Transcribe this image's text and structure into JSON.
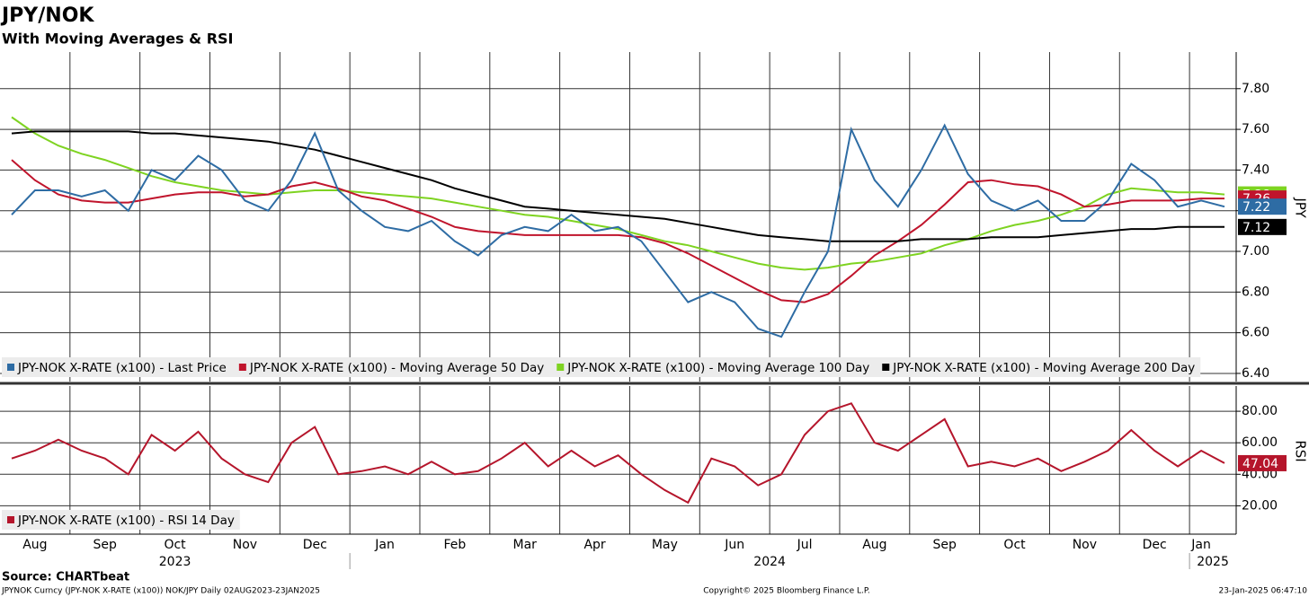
{
  "chart_data": [
    {
      "type": "line",
      "title": "JPY/NOK",
      "subtitle": "With Moving Averages & RSI",
      "y_label": "JPY",
      "categories": [
        null,
        "Aug",
        null,
        null,
        "Sep",
        null,
        null,
        "Oct",
        null,
        null,
        "Nov",
        null,
        null,
        "Dec",
        null,
        null,
        "Jan",
        null,
        null,
        "Feb",
        null,
        null,
        "Mar",
        null,
        null,
        "Apr",
        null,
        null,
        "May",
        null,
        null,
        "Jun",
        null,
        null,
        "Jul",
        null,
        null,
        "Aug",
        null,
        null,
        "Sep",
        null,
        null,
        "Oct",
        null,
        null,
        "Nov",
        null,
        null,
        "Dec",
        null,
        "Jan",
        null
      ],
      "year_labels": [
        "2023",
        "2024",
        "2025"
      ],
      "ylim": [
        6.36,
        7.98
      ],
      "yticks": [
        {
          "value": 6.4,
          "label": "6.40"
        },
        {
          "value": 6.6,
          "label": "6.60"
        },
        {
          "value": 6.8,
          "label": "6.80"
        },
        {
          "value": 7.0,
          "label": "7.00"
        },
        {
          "value": 7.2,
          "label": "7.20"
        },
        {
          "value": 7.4,
          "label": "7.40"
        },
        {
          "value": 7.6,
          "label": "7.60"
        },
        {
          "value": 7.8,
          "label": "7.80"
        }
      ],
      "grid": true,
      "legend": "bottom-left",
      "series": [
        {
          "name": "JPY-NOK X-RATE (x100) - Moving Average 100 Day",
          "color": "#7ed321",
          "end_label": "7.28",
          "values": [
            7.66,
            7.58,
            7.52,
            7.48,
            7.45,
            7.41,
            7.37,
            7.34,
            7.32,
            7.3,
            7.29,
            7.28,
            7.29,
            7.3,
            7.3,
            7.29,
            7.28,
            7.27,
            7.26,
            7.24,
            7.22,
            7.2,
            7.18,
            7.17,
            7.15,
            7.13,
            7.11,
            7.08,
            7.05,
            7.03,
            7.0,
            6.97,
            6.94,
            6.92,
            6.91,
            6.92,
            6.94,
            6.95,
            6.97,
            6.99,
            7.03,
            7.06,
            7.1,
            7.13,
            7.15,
            7.18,
            7.22,
            7.28,
            7.31,
            7.3,
            7.29,
            7.29,
            7.28
          ]
        },
        {
          "name": "JPY-NOK X-RATE (x100) - Moving Average 50 Day",
          "color": "#c0142c",
          "end_label": "7.26",
          "values": [
            7.45,
            7.35,
            7.28,
            7.25,
            7.24,
            7.24,
            7.26,
            7.28,
            7.29,
            7.29,
            7.27,
            7.28,
            7.32,
            7.34,
            7.31,
            7.27,
            7.25,
            7.21,
            7.17,
            7.12,
            7.1,
            7.09,
            7.08,
            7.08,
            7.08,
            7.08,
            7.08,
            7.07,
            7.04,
            6.99,
            6.93,
            6.87,
            6.81,
            6.76,
            6.75,
            6.79,
            6.88,
            6.98,
            7.05,
            7.13,
            7.23,
            7.34,
            7.35,
            7.33,
            7.32,
            7.28,
            7.22,
            7.23,
            7.25,
            7.25,
            7.25,
            7.26,
            7.26
          ]
        },
        {
          "name": "JPY-NOK X-RATE (x100) - Moving Average 200 Day",
          "color": "#000000",
          "end_label": "7.12",
          "values": [
            7.58,
            7.59,
            7.59,
            7.59,
            7.59,
            7.59,
            7.58,
            7.58,
            7.57,
            7.56,
            7.55,
            7.54,
            7.52,
            7.5,
            7.47,
            7.44,
            7.41,
            7.38,
            7.35,
            7.31,
            7.28,
            7.25,
            7.22,
            7.21,
            7.2,
            7.19,
            7.18,
            7.17,
            7.16,
            7.14,
            7.12,
            7.1,
            7.08,
            7.07,
            7.06,
            7.05,
            7.05,
            7.05,
            7.05,
            7.06,
            7.06,
            7.06,
            7.07,
            7.07,
            7.07,
            7.08,
            7.09,
            7.1,
            7.11,
            7.11,
            7.12,
            7.12,
            7.12
          ]
        },
        {
          "name": "JPY-NOK X-RATE (x100) - Last Price",
          "color": "#2e6ca4",
          "end_label": "7.22",
          "values": [
            7.18,
            7.3,
            7.3,
            7.27,
            7.3,
            7.2,
            7.4,
            7.35,
            7.47,
            7.4,
            7.25,
            7.2,
            7.35,
            7.58,
            7.3,
            7.2,
            7.12,
            7.1,
            7.15,
            7.05,
            6.98,
            7.08,
            7.12,
            7.1,
            7.18,
            7.1,
            7.12,
            7.05,
            6.9,
            6.75,
            6.8,
            6.75,
            6.62,
            6.58,
            6.8,
            7.0,
            7.6,
            7.35,
            7.22,
            7.4,
            7.62,
            7.38,
            7.25,
            7.2,
            7.25,
            7.15,
            7.15,
            7.25,
            7.43,
            7.35,
            7.22,
            7.25,
            7.22
          ]
        }
      ]
    },
    {
      "type": "line",
      "y_label": "RSI",
      "ylim": [
        2,
        96
      ],
      "yticks": [
        {
          "value": 20,
          "label": "20.00"
        },
        {
          "value": 40,
          "label": "40.00"
        },
        {
          "value": 60,
          "label": "60.00"
        },
        {
          "value": 80,
          "label": "80.00"
        }
      ],
      "grid": true,
      "legend": "bottom-left",
      "series": [
        {
          "name": "JPY-NOK X-RATE (x100) - RSI 14 Day",
          "color": "#b5152b",
          "end_label": "47.04",
          "values": [
            50,
            55,
            62,
            55,
            50,
            40,
            65,
            55,
            67,
            50,
            40,
            35,
            60,
            70,
            40,
            42,
            45,
            40,
            48,
            40,
            42,
            50,
            60,
            45,
            55,
            45,
            52,
            40,
            30,
            22,
            50,
            45,
            33,
            40,
            65,
            80,
            85,
            60,
            55,
            65,
            75,
            45,
            48,
            45,
            50,
            42,
            48,
            55,
            68,
            55,
            45,
            55,
            47.04
          ]
        }
      ]
    }
  ],
  "footer": {
    "source": "Source: CHARTbeat",
    "description": "JPYNOK Curncy (JPY-NOK X-RATE  (x100)) NOK/JPY  Daily 02AUG2023-23JAN2025",
    "copyright": "Copyright© 2025 Bloomberg Finance L.P.",
    "timestamp": "23-Jan-2025 06:47:10"
  }
}
